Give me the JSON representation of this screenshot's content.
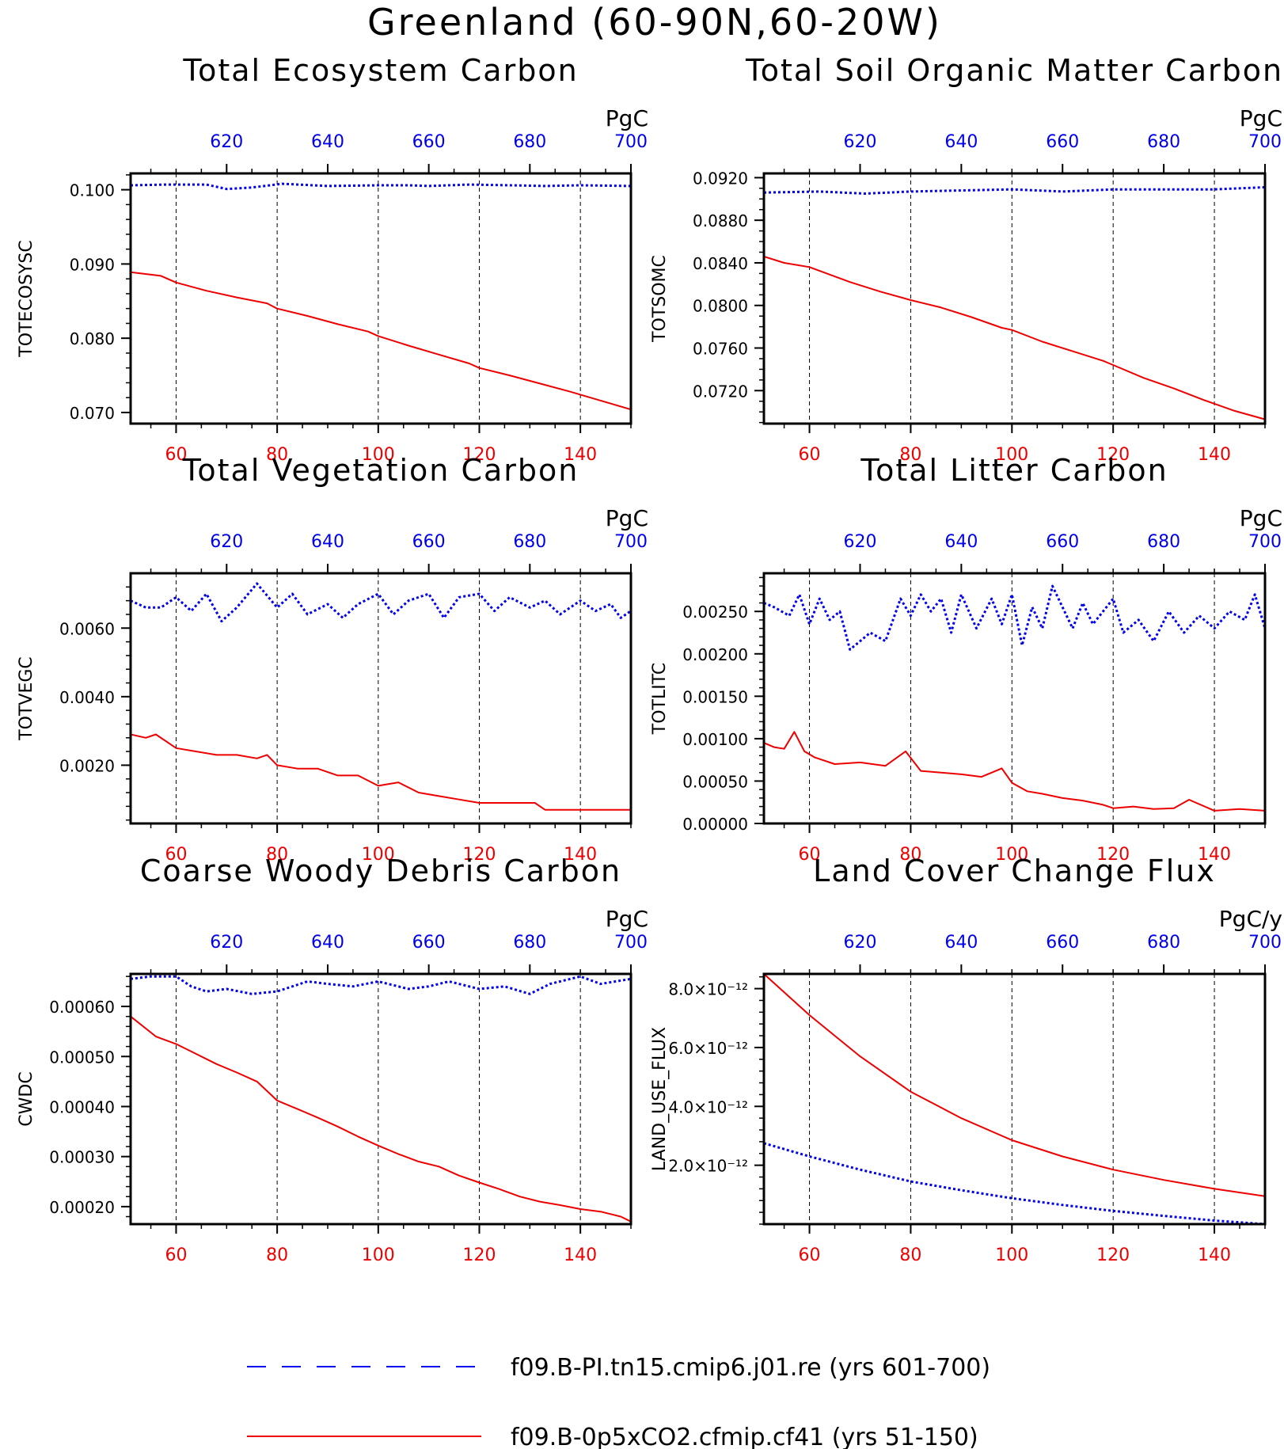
{
  "page_title": "Greenland (60-90N,60-20W)",
  "colors": {
    "control": "#0000ee",
    "experiment": "#ee0000",
    "axis": "#000000"
  },
  "legend": [
    {
      "label": "f09.B-PI.tn15.cmip6.j01.re (yrs 601-700)",
      "color": "#0000ee",
      "style": "dashed"
    },
    {
      "label": "f09.B-0p5xCO2.cfmip.cf41 (yrs 51-150)",
      "color": "#ee0000",
      "style": "solid"
    }
  ],
  "chart_data": [
    {
      "type": "line",
      "title": "Total Ecosystem Carbon",
      "ylabel": "TOTECOSYSC",
      "units": "PgC",
      "ylim": [
        0.0685,
        0.1022
      ],
      "yticks": [
        0.07,
        0.08,
        0.09,
        0.1
      ],
      "ytick_labels": [
        "0.070",
        "0.080",
        "0.090",
        "0.100"
      ],
      "ytick_minor": 0.002,
      "x_bottom": {
        "range": [
          51,
          150
        ],
        "ticks": [
          60,
          80,
          100,
          120,
          140
        ],
        "color": "#ee0000"
      },
      "x_top": {
        "range": [
          601,
          700
        ],
        "ticks": [
          620,
          640,
          660,
          680,
          700
        ],
        "color": "#0000ee"
      },
      "gridlines_bottom": [
        60,
        80,
        100,
        120,
        140
      ],
      "series": [
        {
          "name": "f09.B-PI.tn15.cmip6.j01.re (yrs 601-700)",
          "axis": "top",
          "style": "dashed",
          "x": [
            601,
            608,
            616,
            620,
            625,
            631,
            640,
            650,
            656,
            660,
            668,
            676,
            683,
            690,
            700
          ],
          "y": [
            0.1006,
            0.1007,
            0.1007,
            0.1001,
            0.1003,
            0.1008,
            0.1005,
            0.1006,
            0.1006,
            0.1005,
            0.1007,
            0.1006,
            0.1005,
            0.1006,
            0.1005
          ]
        },
        {
          "name": "f09.B-0p5xCO2.cfmip.cf41 (yrs 51-150)",
          "axis": "bottom",
          "style": "solid",
          "x": [
            51,
            57,
            60,
            66,
            72,
            78,
            80,
            86,
            92,
            98,
            100,
            106,
            112,
            118,
            120,
            126,
            132,
            138,
            144,
            150
          ],
          "y": [
            0.0889,
            0.0884,
            0.0875,
            0.0864,
            0.0855,
            0.0847,
            0.084,
            0.083,
            0.0819,
            0.0809,
            0.0803,
            0.079,
            0.0778,
            0.0766,
            0.076,
            0.075,
            0.0739,
            0.0728,
            0.0716,
            0.0704
          ]
        }
      ]
    },
    {
      "type": "line",
      "title": "Total Soil Organic Matter Carbon",
      "ylabel": "TOTSOMC",
      "units": "PgC",
      "ylim": [
        0.0689,
        0.0924
      ],
      "yticks": [
        0.072,
        0.076,
        0.08,
        0.084,
        0.088,
        0.092
      ],
      "ytick_labels": [
        "0.0720",
        "0.0760",
        "0.0800",
        "0.0840",
        "0.0880",
        "0.0920"
      ],
      "ytick_minor": 0.001,
      "x_bottom": {
        "range": [
          51,
          150
        ],
        "ticks": [
          60,
          80,
          100,
          120,
          140
        ],
        "color": "#ee0000"
      },
      "x_top": {
        "range": [
          601,
          700
        ],
        "ticks": [
          620,
          640,
          660,
          680,
          700
        ],
        "color": "#0000ee"
      },
      "gridlines_bottom": [
        60,
        80,
        100,
        120,
        140
      ],
      "series": [
        {
          "name": "f09.B-PI.tn15.cmip6.j01.re (yrs 601-700)",
          "axis": "top",
          "style": "dashed",
          "x": [
            601,
            612,
            621,
            630,
            640,
            650,
            660,
            670,
            680,
            690,
            700
          ],
          "y": [
            0.0906,
            0.0907,
            0.0905,
            0.0907,
            0.0908,
            0.0909,
            0.0907,
            0.0909,
            0.0909,
            0.0909,
            0.0911
          ]
        },
        {
          "name": "f09.B-0p5xCO2.cfmip.cf41 (yrs 51-150)",
          "axis": "bottom",
          "style": "solid",
          "x": [
            51,
            55,
            60,
            68,
            74,
            80,
            86,
            92,
            98,
            100,
            106,
            112,
            118,
            120,
            126,
            132,
            138,
            144,
            150
          ],
          "y": [
            0.0846,
            0.084,
            0.0836,
            0.0822,
            0.0813,
            0.0805,
            0.0798,
            0.0789,
            0.0779,
            0.0777,
            0.0766,
            0.0757,
            0.0748,
            0.0744,
            0.0732,
            0.0722,
            0.0711,
            0.0701,
            0.0693
          ]
        }
      ]
    },
    {
      "type": "line",
      "title": "Total Vegetation Carbon",
      "ylabel": "TOTVEGC",
      "units": "PgC",
      "ylim": [
        0.0003,
        0.0076
      ],
      "yticks": [
        0.002,
        0.004,
        0.006
      ],
      "ytick_labels": [
        "0.0020",
        "0.0040",
        "0.0060"
      ],
      "ytick_minor": 0.0004,
      "x_bottom": {
        "range": [
          51,
          150
        ],
        "ticks": [
          60,
          80,
          100,
          120,
          140
        ],
        "color": "#ee0000"
      },
      "x_top": {
        "range": [
          601,
          700
        ],
        "ticks": [
          620,
          640,
          660,
          680,
          700
        ],
        "color": "#0000ee"
      },
      "gridlines_bottom": [
        60,
        80,
        100,
        120,
        140
      ],
      "series": [
        {
          "name": "f09.B-PI.tn15.cmip6.j01.re (yrs 601-700)",
          "axis": "top",
          "style": "dashed",
          "x": [
            601,
            604,
            607,
            610,
            613,
            616,
            619,
            622,
            626,
            630,
            633,
            636,
            640,
            643,
            646,
            650,
            653,
            656,
            660,
            663,
            666,
            670,
            673,
            676,
            680,
            683,
            686,
            690,
            693,
            696,
            698,
            700
          ],
          "y": [
            0.0068,
            0.0066,
            0.0066,
            0.0069,
            0.0065,
            0.007,
            0.0062,
            0.0066,
            0.0073,
            0.0066,
            0.007,
            0.0064,
            0.0067,
            0.0063,
            0.0067,
            0.007,
            0.0064,
            0.0068,
            0.007,
            0.0063,
            0.0069,
            0.007,
            0.0065,
            0.0069,
            0.0066,
            0.0068,
            0.0064,
            0.0068,
            0.0065,
            0.0067,
            0.0063,
            0.0065
          ]
        },
        {
          "name": "f09.B-0p5xCO2.cfmip.cf41 (yrs 51-150)",
          "axis": "bottom",
          "style": "solid",
          "x": [
            51,
            54,
            56,
            60,
            64,
            68,
            72,
            76,
            78,
            80,
            84,
            88,
            92,
            96,
            100,
            104,
            108,
            112,
            116,
            120,
            124,
            128,
            131,
            133,
            138,
            144,
            150
          ],
          "y": [
            0.0029,
            0.0028,
            0.0029,
            0.0025,
            0.0024,
            0.0023,
            0.0023,
            0.0022,
            0.0023,
            0.002,
            0.0019,
            0.0019,
            0.0017,
            0.0017,
            0.0014,
            0.0015,
            0.0012,
            0.0011,
            0.001,
            0.0009,
            0.0009,
            0.0009,
            0.0009,
            0.0007,
            0.0007,
            0.0007,
            0.0007
          ]
        }
      ]
    },
    {
      "type": "line",
      "title": "Total Litter Carbon",
      "ylabel": "TOTLITC",
      "units": "PgC",
      "ylim": [
        0.0,
        0.00295
      ],
      "yticks": [
        0.0,
        0.0005,
        0.001,
        0.0015,
        0.002,
        0.0025
      ],
      "ytick_labels": [
        "0.00000",
        "0.00050",
        "0.00100",
        "0.00150",
        "0.00200",
        "0.00250"
      ],
      "ytick_minor": 0.0001,
      "x_bottom": {
        "range": [
          51,
          150
        ],
        "ticks": [
          60,
          80,
          100,
          120,
          140
        ],
        "color": "#ee0000"
      },
      "x_top": {
        "range": [
          601,
          700
        ],
        "ticks": [
          620,
          640,
          660,
          680,
          700
        ],
        "color": "#0000ee"
      },
      "gridlines_bottom": [
        60,
        80,
        100,
        120,
        140
      ],
      "series": [
        {
          "name": "f09.B-PI.tn15.cmip6.j01.re (yrs 601-700)",
          "axis": "top",
          "style": "dashed",
          "x": [
            601,
            603,
            606,
            608,
            610,
            612,
            614,
            616,
            618,
            622,
            625,
            628,
            630,
            632,
            634,
            636,
            638,
            640,
            643,
            646,
            648,
            650,
            652,
            654,
            656,
            658,
            660,
            662,
            664,
            666,
            668,
            670,
            672,
            675,
            678,
            681,
            684,
            687,
            690,
            693,
            696,
            698,
            700
          ],
          "y": [
            0.0026,
            0.00255,
            0.00245,
            0.0027,
            0.00235,
            0.00265,
            0.0024,
            0.0025,
            0.00205,
            0.00225,
            0.00215,
            0.00265,
            0.00245,
            0.0027,
            0.0025,
            0.00265,
            0.00225,
            0.0027,
            0.0023,
            0.00265,
            0.00235,
            0.0027,
            0.0021,
            0.00255,
            0.0023,
            0.0028,
            0.00255,
            0.0023,
            0.0026,
            0.00235,
            0.0025,
            0.00265,
            0.00225,
            0.0024,
            0.00215,
            0.0025,
            0.00225,
            0.00245,
            0.0023,
            0.0025,
            0.0024,
            0.0027,
            0.0023
          ]
        },
        {
          "name": "f09.B-0p5xCO2.cfmip.cf41 (yrs 51-150)",
          "axis": "bottom",
          "style": "solid",
          "x": [
            51,
            53,
            55,
            57,
            59,
            61,
            65,
            70,
            75,
            79,
            82,
            86,
            90,
            94,
            98,
            100,
            103,
            106,
            110,
            114,
            118,
            120,
            124,
            128,
            132,
            135,
            140,
            145,
            150
          ],
          "y": [
            0.00095,
            0.0009,
            0.00088,
            0.00108,
            0.00085,
            0.00078,
            0.0007,
            0.00072,
            0.00068,
            0.00085,
            0.00062,
            0.0006,
            0.00058,
            0.00055,
            0.00065,
            0.00048,
            0.00038,
            0.00035,
            0.0003,
            0.00027,
            0.00022,
            0.00018,
            0.0002,
            0.00017,
            0.00018,
            0.00028,
            0.00015,
            0.00017,
            0.00015
          ]
        }
      ]
    },
    {
      "type": "line",
      "title": "Coarse Woody Debris Carbon",
      "ylabel": "CWDC",
      "units": "PgC",
      "ylim": [
        0.000165,
        0.000665
      ],
      "yticks": [
        0.0002,
        0.0003,
        0.0004,
        0.0005,
        0.0006
      ],
      "ytick_labels": [
        "0.00020",
        "0.00030",
        "0.00040",
        "0.00050",
        "0.00060"
      ],
      "ytick_minor": 2e-05,
      "x_bottom": {
        "range": [
          51,
          150
        ],
        "ticks": [
          60,
          80,
          100,
          120,
          140
        ],
        "color": "#ee0000"
      },
      "x_top": {
        "range": [
          601,
          700
        ],
        "ticks": [
          620,
          640,
          660,
          680,
          700
        ],
        "color": "#0000ee"
      },
      "gridlines_bottom": [
        60,
        80,
        100,
        120,
        140
      ],
      "series": [
        {
          "name": "f09.B-PI.tn15.cmip6.j01.re (yrs 601-700)",
          "axis": "top",
          "style": "dashed",
          "x": [
            601,
            605,
            610,
            613,
            616,
            620,
            625,
            630,
            636,
            640,
            645,
            650,
            656,
            660,
            664,
            670,
            675,
            680,
            684,
            690,
            694,
            700
          ],
          "y": [
            0.000655,
            0.00066,
            0.00066,
            0.00064,
            0.00063,
            0.000635,
            0.000625,
            0.00063,
            0.00065,
            0.000645,
            0.00064,
            0.00065,
            0.000635,
            0.00064,
            0.00065,
            0.000635,
            0.00064,
            0.000625,
            0.000645,
            0.00066,
            0.000645,
            0.000655
          ]
        },
        {
          "name": "f09.B-0p5xCO2.cfmip.cf41 (yrs 51-150)",
          "axis": "bottom",
          "style": "solid",
          "x": [
            51,
            56,
            60,
            64,
            68,
            72,
            76,
            80,
            84,
            88,
            92,
            96,
            100,
            104,
            108,
            112,
            116,
            120,
            124,
            128,
            132,
            136,
            140,
            144,
            148,
            150
          ],
          "y": [
            0.00058,
            0.00054,
            0.000525,
            0.000505,
            0.000485,
            0.000468,
            0.00045,
            0.000412,
            0.000395,
            0.000378,
            0.00036,
            0.00034,
            0.000322,
            0.000305,
            0.00029,
            0.00028,
            0.000262,
            0.000248,
            0.000235,
            0.00022,
            0.00021,
            0.000203,
            0.000195,
            0.00019,
            0.00018,
            0.00017
          ]
        }
      ]
    },
    {
      "type": "line",
      "title": "Land Cover Change Flux",
      "ylabel": "LAND_USE_FLUX",
      "units": "PgC/y",
      "ylim": [
        0.0,
        8.5e-12
      ],
      "yticks": [
        2e-12,
        4e-12,
        6e-12,
        8e-12
      ],
      "ytick_labels": [
        "2.0×10⁻¹²",
        "4.0×10⁻¹²",
        "6.0×10⁻¹²",
        "8.0×10⁻¹²"
      ],
      "ytick_minor": 4e-13,
      "x_bottom": {
        "range": [
          51,
          150
        ],
        "ticks": [
          60,
          80,
          100,
          120,
          140
        ],
        "color": "#ee0000"
      },
      "x_top": {
        "range": [
          601,
          700
        ],
        "ticks": [
          620,
          640,
          660,
          680,
          700
        ],
        "color": "#0000ee"
      },
      "gridlines_bottom": [
        60,
        80,
        100,
        120,
        140
      ],
      "series": [
        {
          "name": "f09.B-PI.tn15.cmip6.j01.re (yrs 601-700)",
          "axis": "top",
          "style": "dashed",
          "x": [
            601,
            610,
            620,
            630,
            640,
            650,
            660,
            670,
            680,
            690,
            700
          ],
          "y": [
            2.75e-12,
            2.3e-12,
            1.85e-12,
            1.45e-12,
            1.15e-12,
            8.8e-13,
            6.5e-13,
            4.5e-13,
            2.8e-13,
            1.2e-13,
            0.0
          ]
        },
        {
          "name": "f09.B-0p5xCO2.cfmip.cf41 (yrs 51-150)",
          "axis": "bottom",
          "style": "solid",
          "x": [
            51,
            60,
            70,
            80,
            90,
            100,
            110,
            120,
            130,
            140,
            150
          ],
          "y": [
            8.5e-12,
            7.1e-12,
            5.7e-12,
            4.5e-12,
            3.6e-12,
            2.85e-12,
            2.3e-12,
            1.85e-12,
            1.5e-12,
            1.2e-12,
            9.5e-13
          ]
        }
      ]
    }
  ]
}
